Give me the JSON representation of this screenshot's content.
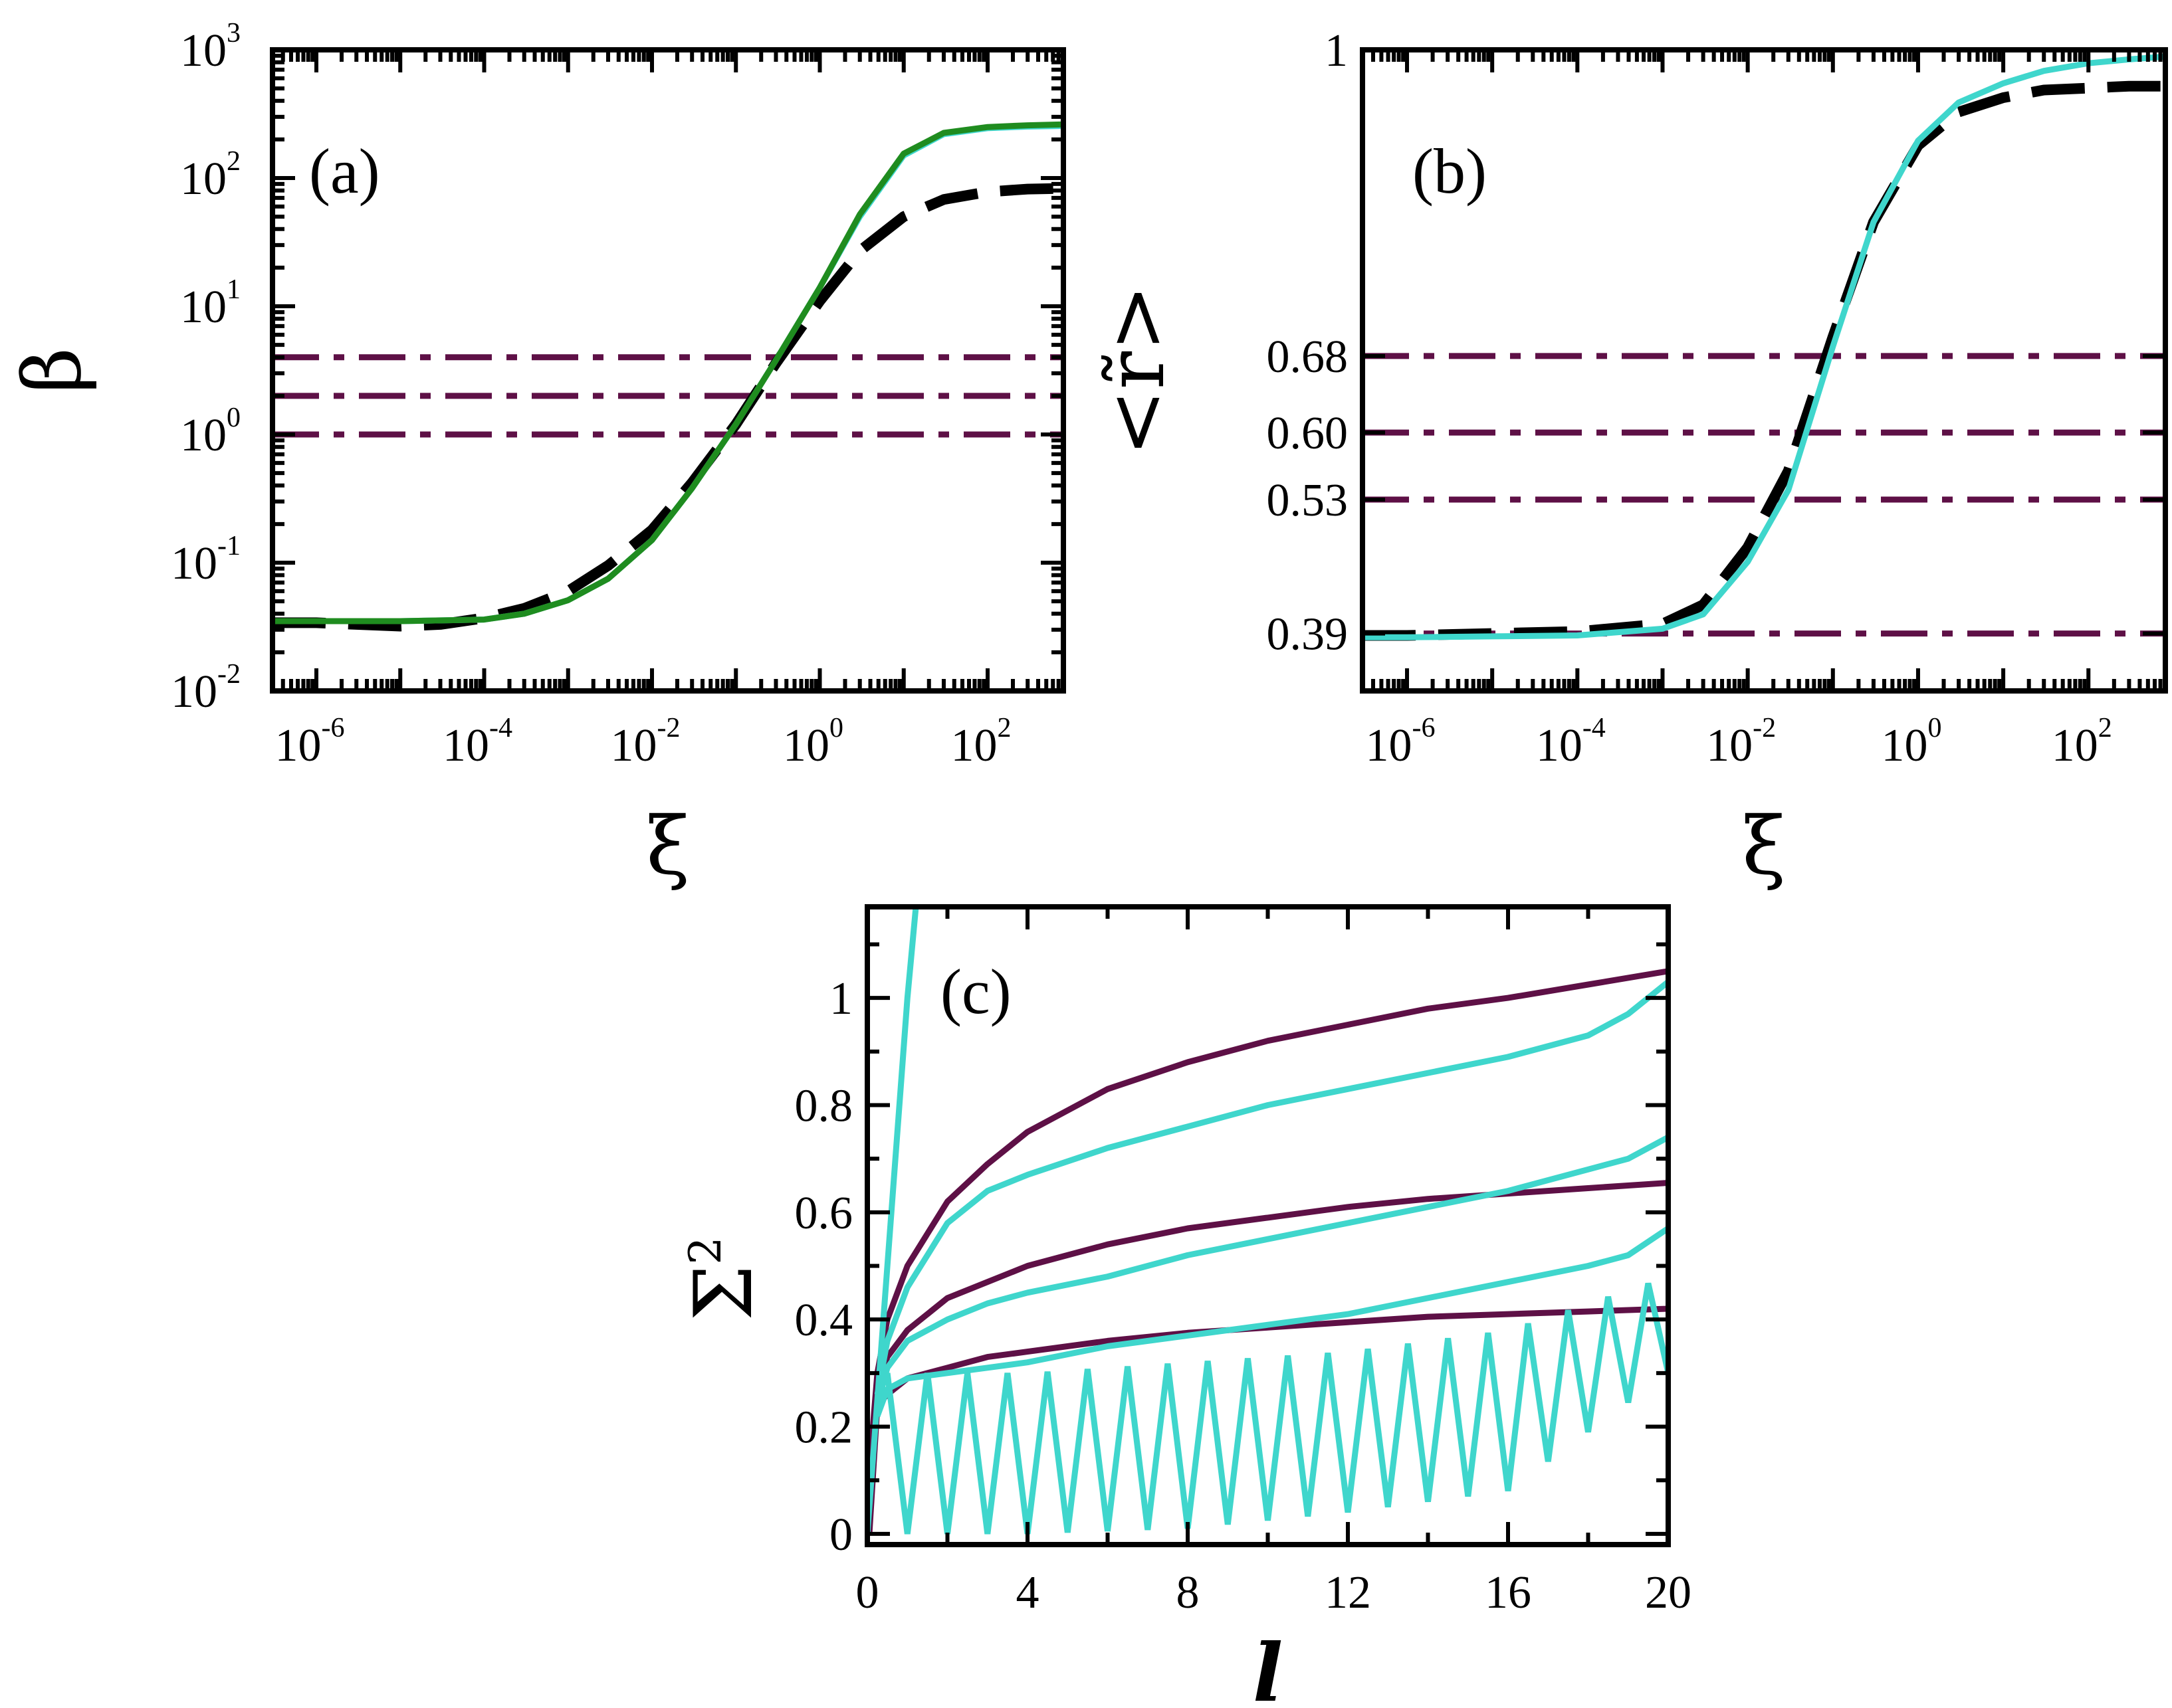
{
  "colors": {
    "maroon": "#5e1046",
    "cyan": "#3fd6cc",
    "green": "#1f8c1f",
    "red": "#e02020",
    "black": "#000000"
  },
  "chart_data": [
    {
      "panel": "a",
      "type": "line",
      "panel_label": "(a)",
      "xlabel": "ξ",
      "ylabel": "β",
      "xscale": "log",
      "yscale": "log",
      "xlim": [
        3e-07,
        800
      ],
      "ylim": [
        0.01,
        1000
      ],
      "xticks": [
        {
          "v": 1e-06,
          "base": "10",
          "exp": "-6"
        },
        {
          "v": 0.0001,
          "base": "10",
          "exp": "-4"
        },
        {
          "v": 0.01,
          "base": "10",
          "exp": "-2"
        },
        {
          "v": 1,
          "base": "10",
          "exp": "0"
        },
        {
          "v": 100,
          "base": "10",
          "exp": "2"
        }
      ],
      "yticks": [
        {
          "v": 0.01,
          "base": "10",
          "exp": "-2"
        },
        {
          "v": 0.1,
          "base": "10",
          "exp": "-1"
        },
        {
          "v": 1,
          "base": "10",
          "exp": "0"
        },
        {
          "v": 10,
          "base": "10",
          "exp": "1"
        },
        {
          "v": 100,
          "base": "10",
          "exp": "2"
        },
        {
          "v": 1000,
          "base": "10",
          "exp": "3"
        }
      ],
      "hlines": [
        1,
        2,
        4
      ],
      "series": [
        {
          "name": "black-dashed",
          "style": "dashed",
          "color": "#000000",
          "x": [
            3e-07,
            1e-06,
            1e-05,
            3e-05,
            0.0001,
            0.0003,
            0.001,
            0.003,
            0.01,
            0.03,
            0.1,
            0.3,
            1,
            3,
            10,
            30,
            100,
            300,
            800
          ],
          "y": [
            0.034,
            0.034,
            0.032,
            0.033,
            0.037,
            0.044,
            0.06,
            0.095,
            0.18,
            0.42,
            1.2,
            3.6,
            11,
            27,
            50,
            68,
            78,
            82,
            83
          ]
        },
        {
          "name": "cyan",
          "style": "solid",
          "color": "#3fd6cc",
          "x": [
            3e-07,
            1e-06,
            1e-05,
            0.0001,
            0.0003,
            0.001,
            0.003,
            0.01,
            0.03,
            0.1,
            0.3,
            1,
            3,
            10,
            30,
            100,
            300,
            800
          ],
          "y": [
            0.035,
            0.035,
            0.035,
            0.036,
            0.04,
            0.051,
            0.075,
            0.15,
            0.38,
            1.2,
            3.8,
            14,
            50,
            150,
            220,
            245,
            252,
            255
          ]
        },
        {
          "name": "green",
          "style": "solid",
          "color": "#1f8c1f",
          "x": [
            3e-07,
            1e-06,
            1e-05,
            0.0001,
            0.0003,
            0.001,
            0.003,
            0.01,
            0.03,
            0.1,
            0.3,
            1,
            3,
            10,
            30,
            100,
            300,
            800
          ],
          "y": [
            0.035,
            0.035,
            0.035,
            0.036,
            0.04,
            0.051,
            0.075,
            0.15,
            0.38,
            1.2,
            3.8,
            14,
            52,
            155,
            225,
            250,
            258,
            262
          ]
        }
      ]
    },
    {
      "panel": "b",
      "type": "line",
      "panel_label": "(b)",
      "xlabel": "ξ",
      "ylabel": "<r̃>",
      "xscale": "log",
      "yscale": "linear",
      "xlim": [
        3e-07,
        800
      ],
      "ylim": [
        0.33,
        1.0
      ],
      "xticks": [
        {
          "v": 1e-06,
          "base": "10",
          "exp": "-6"
        },
        {
          "v": 0.0001,
          "base": "10",
          "exp": "-4"
        },
        {
          "v": 0.01,
          "base": "10",
          "exp": "-2"
        },
        {
          "v": 1,
          "base": "10",
          "exp": "0"
        },
        {
          "v": 100,
          "base": "10",
          "exp": "2"
        }
      ],
      "yticks": [
        {
          "v": 0.39,
          "label": "0.39"
        },
        {
          "v": 0.53,
          "label": "0.53"
        },
        {
          "v": 0.6,
          "label": "0.60"
        },
        {
          "v": 0.68,
          "label": "0.68"
        },
        {
          "v": 1.0,
          "label": "1"
        }
      ],
      "hlines": [
        0.39,
        0.53,
        0.6,
        0.68
      ],
      "series": [
        {
          "name": "black-dashed",
          "style": "dashed",
          "color": "#000000",
          "x": [
            3e-07,
            1e-06,
            1e-05,
            0.0001,
            0.001,
            0.003,
            0.01,
            0.03,
            0.1,
            0.3,
            1,
            3,
            10,
            30,
            100,
            300,
            800
          ],
          "y": [
            0.388,
            0.388,
            0.39,
            0.392,
            0.4,
            0.42,
            0.48,
            0.56,
            0.7,
            0.82,
            0.9,
            0.935,
            0.95,
            0.958,
            0.96,
            0.962,
            0.962
          ]
        },
        {
          "name": "cyan",
          "style": "solid",
          "color": "#3fd6cc",
          "x": [
            3e-07,
            1e-06,
            1e-05,
            0.0001,
            0.001,
            0.003,
            0.01,
            0.03,
            0.1,
            0.3,
            1,
            3,
            10,
            30,
            100,
            300,
            800
          ],
          "y": [
            0.386,
            0.386,
            0.387,
            0.388,
            0.395,
            0.41,
            0.465,
            0.54,
            0.69,
            0.82,
            0.905,
            0.945,
            0.965,
            0.978,
            0.986,
            0.99,
            0.993
          ]
        }
      ]
    },
    {
      "panel": "c",
      "type": "line",
      "panel_label": "(c)",
      "xlabel": "l",
      "ylabel": "Σ",
      "ylabel_sup": "2",
      "xlim": [
        0,
        20
      ],
      "ylim": [
        -0.02,
        1.17
      ],
      "xticks": [
        0,
        4,
        8,
        12,
        16,
        20
      ],
      "yticks": [
        {
          "v": 0,
          "label": "0"
        },
        {
          "v": 0.2,
          "label": "0.2"
        },
        {
          "v": 0.4,
          "label": "0.4"
        },
        {
          "v": 0.6,
          "label": "0.6"
        },
        {
          "v": 0.8,
          "label": "0.8"
        },
        {
          "v": 1.0,
          "label": "1"
        }
      ],
      "series": [
        {
          "name": "maroon-upper",
          "color": "#5e1046",
          "x": [
            0.05,
            0.25,
            0.5,
            1,
            2,
            3,
            4,
            6,
            8,
            10,
            12,
            14,
            16,
            18,
            20
          ],
          "y": [
            0.12,
            0.3,
            0.4,
            0.5,
            0.62,
            0.69,
            0.75,
            0.83,
            0.88,
            0.92,
            0.95,
            0.98,
            1.0,
            1.025,
            1.05
          ]
        },
        {
          "name": "maroon-middle",
          "color": "#5e1046",
          "x": [
            0.05,
            0.25,
            0.5,
            1,
            2,
            3,
            4,
            6,
            8,
            10,
            12,
            14,
            16,
            18,
            20
          ],
          "y": [
            0.1,
            0.27,
            0.33,
            0.38,
            0.44,
            0.47,
            0.5,
            0.54,
            0.57,
            0.59,
            0.61,
            0.625,
            0.635,
            0.645,
            0.655
          ]
        },
        {
          "name": "maroon-lower",
          "color": "#5e1046",
          "x": [
            0.05,
            0.25,
            0.5,
            1,
            2,
            3,
            4,
            6,
            8,
            10,
            12,
            14,
            16,
            18,
            20
          ],
          "y": [
            0.0,
            0.24,
            0.26,
            0.29,
            0.31,
            0.33,
            0.34,
            0.36,
            0.375,
            0.385,
            0.395,
            0.405,
            0.41,
            0.415,
            0.42
          ]
        },
        {
          "name": "cyan-steep",
          "color": "#3fd6cc",
          "x": [
            0,
            0.35,
            0.7,
            1.0,
            1.25
          ],
          "y": [
            0,
            0.35,
            0.7,
            1.0,
            1.2
          ]
        },
        {
          "name": "cyan-upper",
          "color": "#3fd6cc",
          "x": [
            0.25,
            0.5,
            1,
            2,
            3,
            4,
            6,
            8,
            10,
            12,
            14,
            16,
            18,
            19,
            20
          ],
          "y": [
            0.26,
            0.36,
            0.46,
            0.58,
            0.64,
            0.67,
            0.72,
            0.76,
            0.8,
            0.83,
            0.86,
            0.89,
            0.93,
            0.97,
            1.03
          ]
        },
        {
          "name": "cyan-middle",
          "color": "#3fd6cc",
          "x": [
            0.25,
            0.5,
            1,
            2,
            3,
            4,
            6,
            8,
            10,
            12,
            14,
            16,
            18,
            19,
            20
          ],
          "y": [
            0.24,
            0.31,
            0.36,
            0.4,
            0.43,
            0.45,
            0.48,
            0.52,
            0.55,
            0.58,
            0.61,
            0.64,
            0.68,
            0.7,
            0.74
          ]
        },
        {
          "name": "cyan-lower",
          "color": "#3fd6cc",
          "x": [
            0.25,
            0.5,
            1,
            2,
            3,
            4,
            6,
            8,
            10,
            12,
            14,
            16,
            18,
            19,
            20
          ],
          "y": [
            0.22,
            0.27,
            0.29,
            0.3,
            0.31,
            0.32,
            0.35,
            0.37,
            0.39,
            0.41,
            0.44,
            0.47,
            0.5,
            0.52,
            0.57
          ]
        },
        {
          "name": "cyan-oscillating-upper",
          "color": "#3fd6cc",
          "x": [
            0.5,
            4,
            8,
            12,
            16,
            20
          ],
          "y": [
            0.3,
            0.3,
            0.32,
            0.34,
            0.38,
            0.48
          ]
        },
        {
          "name": "cyan-oscillating-lower",
          "color": "#3fd6cc",
          "x": [
            0.5,
            4,
            8,
            12,
            16,
            20
          ],
          "y": [
            0.0,
            0.0,
            0.01,
            0.04,
            0.08,
            0.3
          ]
        }
      ]
    }
  ]
}
